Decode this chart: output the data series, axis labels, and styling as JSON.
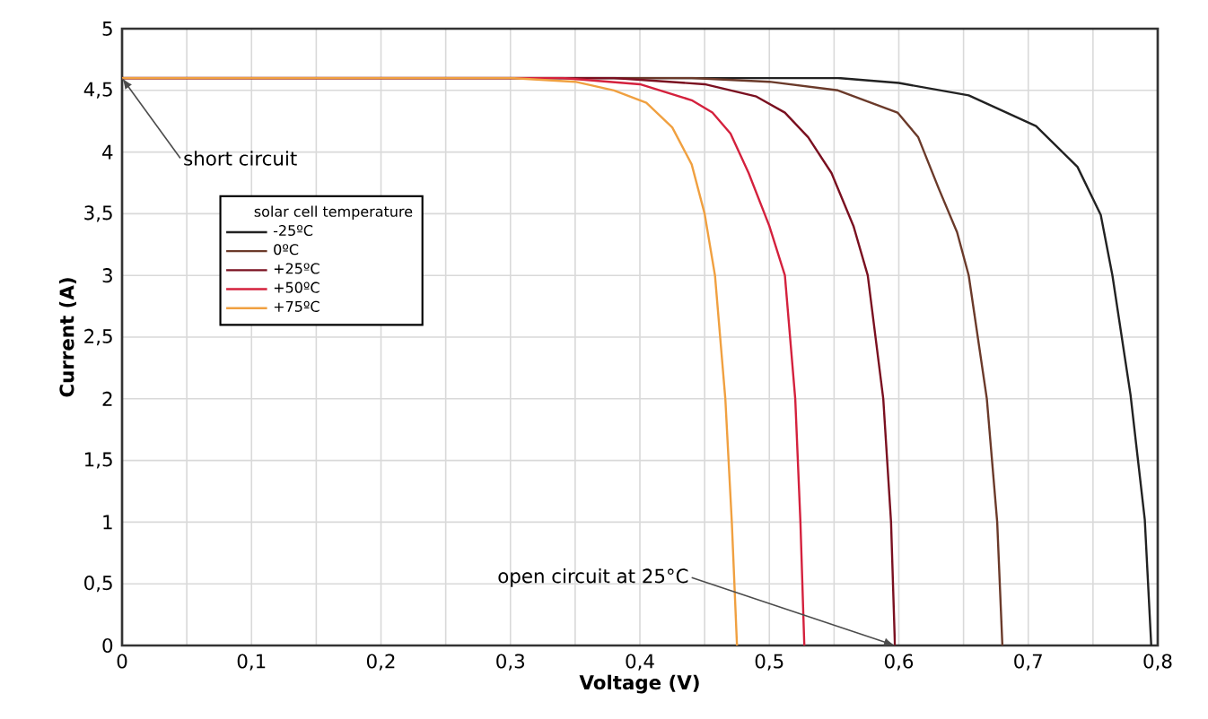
{
  "chart_data": {
    "type": "line",
    "xlabel": "Voltage (V)",
    "ylabel": "Current (A)",
    "legend_title": "solar cell temperature",
    "legend": "top left",
    "grid": true,
    "xlim": [
      0,
      0.8
    ],
    "ylim": [
      0,
      5
    ],
    "xticks": [
      0,
      {
        "value": 0.05,
        "label": null
      },
      {
        "value": 0.1,
        "label": "0,1"
      },
      {
        "value": 0.15,
        "label": null
      },
      {
        "value": 0.2,
        "label": "0,2"
      },
      {
        "value": 0.25,
        "label": null
      },
      {
        "value": 0.3,
        "label": "0,3"
      },
      {
        "value": 0.35,
        "label": null
      },
      {
        "value": 0.4,
        "label": "0,4"
      },
      {
        "value": 0.45,
        "label": null
      },
      {
        "value": 0.5,
        "label": "0,5"
      },
      {
        "value": 0.55,
        "label": null
      },
      {
        "value": 0.6,
        "label": "0,6"
      },
      {
        "value": 0.65,
        "label": null
      },
      {
        "value": 0.7,
        "label": "0,7"
      },
      {
        "value": 0.75,
        "label": null
      },
      {
        "value": 0.8,
        "label": "0,8"
      }
    ],
    "yticks": [
      0,
      {
        "value": 0.5,
        "label": "0,5"
      },
      1,
      {
        "value": 1.5,
        "label": "1,5"
      },
      2,
      {
        "value": 2.5,
        "label": "2,5"
      },
      3,
      {
        "value": 3.5,
        "label": "3,5"
      },
      4,
      {
        "value": 4.5,
        "label": "4,5"
      },
      5
    ],
    "annotations": [
      {
        "text": "short circuit",
        "x": 0,
        "y": 4.6
      },
      {
        "text": "open circuit at 25°C",
        "x": 0.597,
        "y": 0
      }
    ],
    "series": [
      {
        "name": "-25ºC",
        "color": "#222222",
        "x": [
          0,
          0.5,
          0.553,
          0.6,
          0.654,
          0.706,
          0.738,
          0.756,
          0.765,
          0.779,
          0.79,
          0.795
        ],
        "values": [
          4.6,
          4.6,
          4.6,
          4.56,
          4.46,
          4.21,
          3.88,
          3.49,
          3.0,
          2.03,
          1.02,
          0
        ]
      },
      {
        "name": "0ºC",
        "color": "#6b3a2a",
        "x": [
          0,
          0.44,
          0.5,
          0.553,
          0.599,
          0.615,
          0.631,
          0.645,
          0.654,
          0.668,
          0.676,
          0.68
        ],
        "values": [
          4.6,
          4.6,
          4.57,
          4.5,
          4.32,
          4.12,
          3.7,
          3.35,
          3.0,
          2.0,
          1.0,
          0
        ]
      },
      {
        "name": "+25ºC",
        "color": "#7a1020",
        "x": [
          0,
          0.38,
          0.45,
          0.49,
          0.512,
          0.53,
          0.548,
          0.565,
          0.576,
          0.588,
          0.594,
          0.597
        ],
        "values": [
          4.6,
          4.6,
          4.55,
          4.45,
          4.32,
          4.12,
          3.83,
          3.4,
          3.0,
          2.0,
          1.0,
          0
        ]
      },
      {
        "name": "+50ºC",
        "color": "#d4213d",
        "x": [
          0,
          0.34,
          0.4,
          0.44,
          0.456,
          0.47,
          0.484,
          0.5,
          0.512,
          0.52,
          0.524,
          0.527
        ],
        "values": [
          4.6,
          4.6,
          4.55,
          4.42,
          4.32,
          4.15,
          3.83,
          3.4,
          3.0,
          2.0,
          1.0,
          0
        ]
      },
      {
        "name": "+75ºC",
        "color": "#f0a040",
        "x": [
          0,
          0.3,
          0.35,
          0.38,
          0.405,
          0.425,
          0.44,
          0.45,
          0.458,
          0.466,
          0.471,
          0.475
        ],
        "values": [
          4.6,
          4.6,
          4.57,
          4.5,
          4.4,
          4.2,
          3.9,
          3.5,
          3.0,
          2.0,
          1.0,
          0
        ]
      }
    ]
  }
}
